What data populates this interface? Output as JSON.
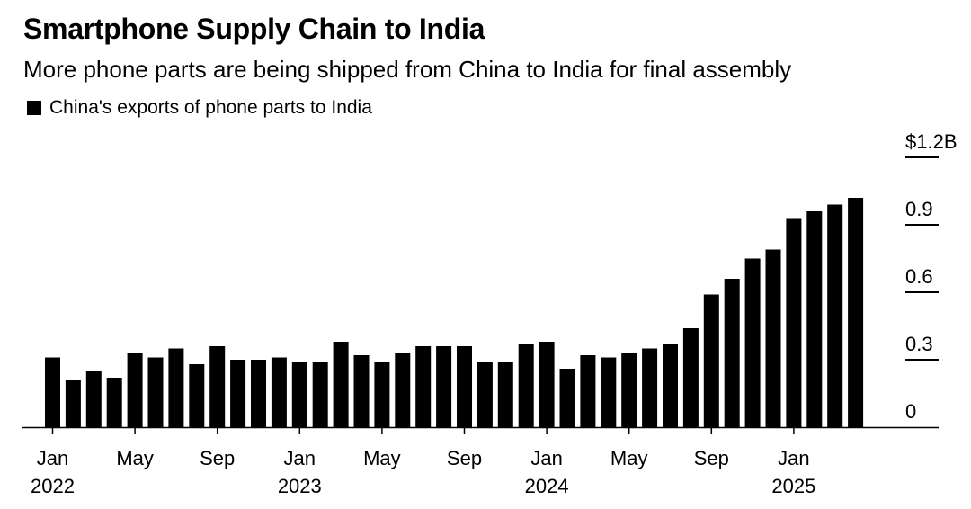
{
  "header": {
    "title": "Smartphone Supply Chain to India",
    "subtitle": "More phone parts are being shipped from China to India for final assembly"
  },
  "chart_data": {
    "type": "bar",
    "series": [
      {
        "name": "China's exports of phone parts to India",
        "color": "#000000",
        "values": [
          0.31,
          0.21,
          0.25,
          0.22,
          0.33,
          0.31,
          0.35,
          0.28,
          0.36,
          0.3,
          0.3,
          0.31,
          0.29,
          0.29,
          0.38,
          0.32,
          0.29,
          0.33,
          0.36,
          0.36,
          0.36,
          0.29,
          0.29,
          0.37,
          0.38,
          0.26,
          0.32,
          0.31,
          0.33,
          0.35,
          0.37,
          0.44,
          0.59,
          0.66,
          0.75,
          0.79,
          0.93,
          0.96,
          0.99,
          1.02
        ]
      }
    ],
    "x_start": "2022-01",
    "x_ticks": [
      {
        "month": "Jan",
        "year": "2022",
        "index": 0
      },
      {
        "month": "May",
        "year": "",
        "index": 4
      },
      {
        "month": "Sep",
        "year": "",
        "index": 8
      },
      {
        "month": "Jan",
        "year": "2023",
        "index": 12
      },
      {
        "month": "May",
        "year": "",
        "index": 16
      },
      {
        "month": "Sep",
        "year": "",
        "index": 20
      },
      {
        "month": "Jan",
        "year": "2024",
        "index": 24
      },
      {
        "month": "May",
        "year": "",
        "index": 28
      },
      {
        "month": "Sep",
        "year": "",
        "index": 32
      },
      {
        "month": "Jan",
        "year": "2025",
        "index": 36
      }
    ],
    "y_ticks": [
      {
        "value": 0,
        "label": "0"
      },
      {
        "value": 0.3,
        "label": "0.3"
      },
      {
        "value": 0.6,
        "label": "0.6"
      },
      {
        "value": 0.9,
        "label": "0.9"
      },
      {
        "value": 1.2,
        "label": "$1.2B"
      }
    ],
    "ylim": [
      0,
      1.2
    ],
    "y_axis_position": "right",
    "grid": false,
    "legend_position": "top-left"
  }
}
